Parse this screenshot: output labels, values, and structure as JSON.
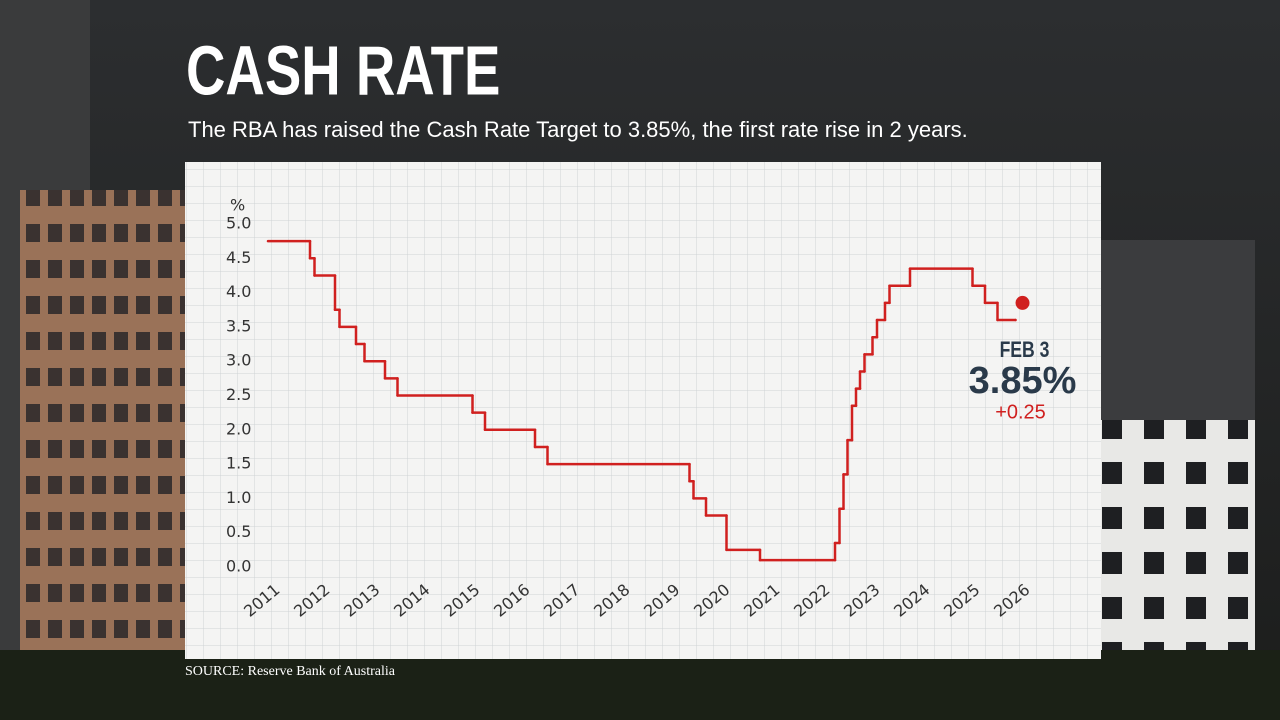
{
  "chart_data": {
    "type": "step-line",
    "title": "CASH RATE",
    "subtitle": "The RBA has raised the Cash Rate Target to 3.85%, the first rate rise in 2 years.",
    "y_unit": "%",
    "source": "SOURCE: Reserve Bank of Australia",
    "line_color": "#d0201f",
    "x": [
      2011.0,
      2011.84,
      2011.93,
      2012.34,
      2012.43,
      2012.76,
      2012.93,
      2013.34,
      2013.59,
      2015.09,
      2015.34,
      2016.34,
      2016.59,
      2019.43,
      2019.51,
      2019.76,
      2020.17,
      2020.84,
      2022.34,
      2022.43,
      2022.51,
      2022.59,
      2022.68,
      2022.76,
      2022.84,
      2022.93,
      2023.09,
      2023.18,
      2023.34,
      2023.43,
      2023.84,
      2025.09,
      2025.34,
      2025.59,
      2025.95
    ],
    "values": [
      4.75,
      4.5,
      4.25,
      3.75,
      3.5,
      3.25,
      3.0,
      2.75,
      2.5,
      2.25,
      2.0,
      1.75,
      1.5,
      1.25,
      1.0,
      0.75,
      0.25,
      0.1,
      0.35,
      0.85,
      1.35,
      1.85,
      2.35,
      2.6,
      2.85,
      3.1,
      3.35,
      3.6,
      3.85,
      4.1,
      4.35,
      4.1,
      3.85,
      3.6,
      3.6
    ],
    "highlight": {
      "x": 2026.09,
      "value": 3.85,
      "date_label": "FEB 3",
      "value_label": "3.85%",
      "change_label": "+0.25"
    },
    "xlim": [
      2011,
      2026.3
    ],
    "xticks": [
      2011,
      2012,
      2013,
      2014,
      2015,
      2016,
      2017,
      2018,
      2019,
      2020,
      2021,
      2022,
      2023,
      2024,
      2025,
      2026
    ],
    "ylim": [
      0,
      5
    ],
    "yticks": [
      {
        "value": 0,
        "label": "0.0"
      },
      {
        "value": 0.5,
        "label": "0.5"
      },
      {
        "value": 1,
        "label": "1.0"
      },
      {
        "value": 1.5,
        "label": "1.5"
      },
      {
        "value": 2,
        "label": "2.0"
      },
      {
        "value": 2.5,
        "label": "2.5"
      },
      {
        "value": 3,
        "label": "3.0"
      },
      {
        "value": 3.5,
        "label": "3.5"
      },
      {
        "value": 4,
        "label": "4.0"
      },
      {
        "value": 4.5,
        "label": "4.5"
      },
      {
        "value": 5,
        "label": "5.0"
      }
    ]
  }
}
